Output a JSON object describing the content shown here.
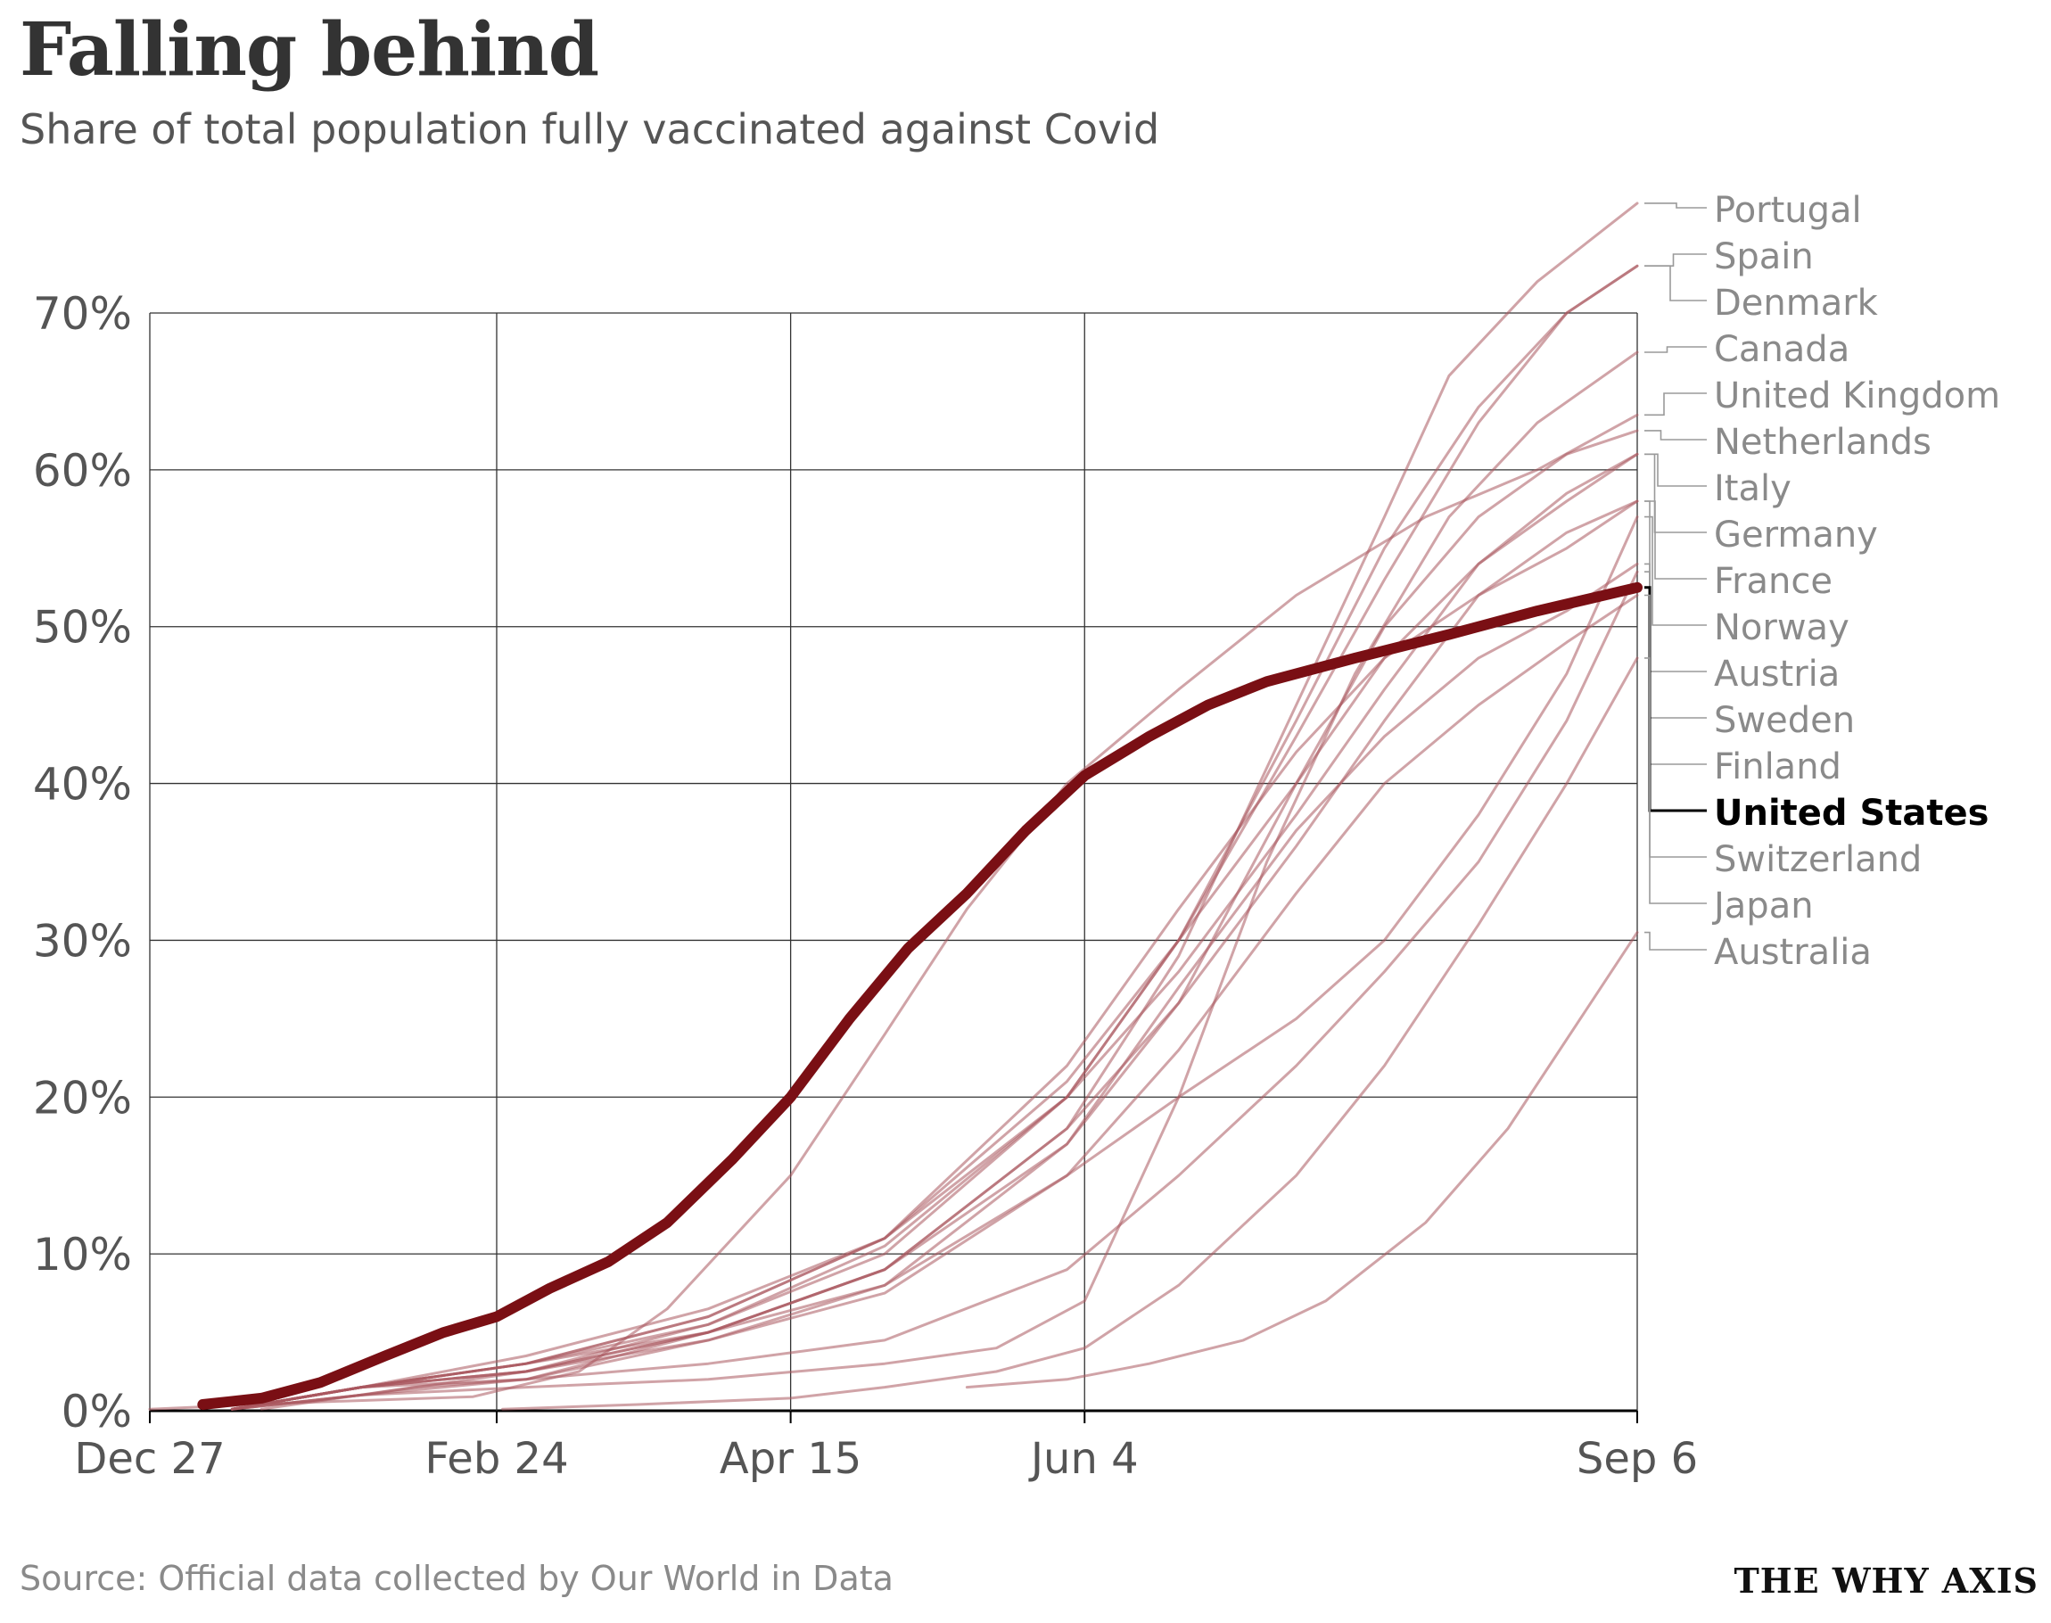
{
  "title": "Falling behind",
  "subtitle": "Share of total population fully vaccinated against Covid",
  "source": "Source: Official data collected by Our World in Data",
  "brand": "THE WHY AXIS",
  "colors": {
    "highlight": "#7a0f14",
    "others": "#a9575e",
    "grid": "#333333",
    "axis_text": "#555555",
    "label_text": "#8a8a8a",
    "leader": "#9a9a9a"
  },
  "chart_data": {
    "type": "line",
    "title": "Falling behind",
    "subtitle": "Share of total population fully vaccinated against Covid",
    "x_type": "date",
    "x_domain": [
      "2020-12-27",
      "2021-09-06"
    ],
    "xticks": [
      {
        "date": "2020-12-27",
        "label": "Dec 27"
      },
      {
        "date": "2021-02-24",
        "label": "Feb 24"
      },
      {
        "date": "2021-04-15",
        "label": "Apr 15"
      },
      {
        "date": "2021-06-04",
        "label": "Jun 4"
      },
      {
        "date": "2021-09-06",
        "label": "Sep 6"
      }
    ],
    "ylim": [
      0,
      70
    ],
    "yticks": [
      0,
      10,
      20,
      30,
      40,
      50,
      60,
      70
    ],
    "ytick_labels": [
      "0%",
      "10%",
      "20%",
      "30%",
      "40%",
      "50%",
      "60%",
      "70%"
    ],
    "grid": true,
    "highlight_series": "United States",
    "series": [
      {
        "name": "Portugal",
        "points": [
          [
            "2021-01-10",
            0.1
          ],
          [
            "2021-02-01",
            1.0
          ],
          [
            "2021-03-01",
            2.5
          ],
          [
            "2021-04-01",
            5.0
          ],
          [
            "2021-05-01",
            9.0
          ],
          [
            "2021-06-01",
            18.0
          ],
          [
            "2021-06-20",
            29.0
          ],
          [
            "2021-07-10",
            45.0
          ],
          [
            "2021-07-25",
            57.0
          ],
          [
            "2021-08-05",
            66.0
          ],
          [
            "2021-08-20",
            72.0
          ],
          [
            "2021-09-06",
            77.0
          ]
        ]
      },
      {
        "name": "Spain",
        "points": [
          [
            "2021-01-10",
            0.1
          ],
          [
            "2021-02-01",
            1.5
          ],
          [
            "2021-03-01",
            3.0
          ],
          [
            "2021-04-01",
            6.0
          ],
          [
            "2021-05-01",
            11.0
          ],
          [
            "2021-06-01",
            20.0
          ],
          [
            "2021-06-20",
            30.0
          ],
          [
            "2021-07-10",
            44.0
          ],
          [
            "2021-07-25",
            55.0
          ],
          [
            "2021-08-10",
            64.0
          ],
          [
            "2021-08-25",
            70.0
          ],
          [
            "2021-09-06",
            73.0
          ]
        ]
      },
      {
        "name": "Denmark",
        "points": [
          [
            "2021-01-10",
            0.1
          ],
          [
            "2021-02-01",
            1.5
          ],
          [
            "2021-03-01",
            3.5
          ],
          [
            "2021-04-01",
            6.5
          ],
          [
            "2021-05-01",
            11.0
          ],
          [
            "2021-06-01",
            21.0
          ],
          [
            "2021-06-20",
            30.0
          ],
          [
            "2021-07-10",
            43.0
          ],
          [
            "2021-07-25",
            53.0
          ],
          [
            "2021-08-10",
            63.0
          ],
          [
            "2021-08-25",
            70.0
          ],
          [
            "2021-09-06",
            73.0
          ]
        ]
      },
      {
        "name": "Canada",
        "points": [
          [
            "2021-01-10",
            0.1
          ],
          [
            "2021-02-01",
            1.0
          ],
          [
            "2021-03-01",
            1.5
          ],
          [
            "2021-04-01",
            2.0
          ],
          [
            "2021-05-01",
            3.0
          ],
          [
            "2021-05-20",
            4.0
          ],
          [
            "2021-06-04",
            7.0
          ],
          [
            "2021-06-20",
            20.0
          ],
          [
            "2021-07-05",
            35.0
          ],
          [
            "2021-07-20",
            47.0
          ],
          [
            "2021-08-05",
            57.0
          ],
          [
            "2021-08-20",
            63.0
          ],
          [
            "2021-09-06",
            67.5
          ]
        ]
      },
      {
        "name": "United Kingdom",
        "points": [
          [
            "2020-12-27",
            0.1
          ],
          [
            "2021-01-20",
            0.5
          ],
          [
            "2021-02-20",
            0.9
          ],
          [
            "2021-03-10",
            2.5
          ],
          [
            "2021-03-25",
            6.5
          ],
          [
            "2021-04-15",
            15.0
          ],
          [
            "2021-05-01",
            24.0
          ],
          [
            "2021-05-15",
            32.0
          ],
          [
            "2021-06-01",
            40.0
          ],
          [
            "2021-06-20",
            46.0
          ],
          [
            "2021-07-10",
            52.0
          ],
          [
            "2021-08-01",
            57.0
          ],
          [
            "2021-08-20",
            60.0
          ],
          [
            "2021-09-06",
            63.5
          ]
        ]
      },
      {
        "name": "Netherlands",
        "points": [
          [
            "2021-01-15",
            0.1
          ],
          [
            "2021-02-10",
            1.5
          ],
          [
            "2021-03-01",
            2.0
          ],
          [
            "2021-04-01",
            5.0
          ],
          [
            "2021-05-01",
            9.0
          ],
          [
            "2021-06-01",
            17.0
          ],
          [
            "2021-06-20",
            26.0
          ],
          [
            "2021-07-10",
            40.0
          ],
          [
            "2021-07-25",
            50.0
          ],
          [
            "2021-08-10",
            57.0
          ],
          [
            "2021-08-25",
            61.0
          ],
          [
            "2021-09-06",
            62.5
          ]
        ]
      },
      {
        "name": "Italy",
        "points": [
          [
            "2021-01-10",
            0.1
          ],
          [
            "2021-02-01",
            1.5
          ],
          [
            "2021-03-01",
            2.5
          ],
          [
            "2021-04-01",
            5.5
          ],
          [
            "2021-05-01",
            10.5
          ],
          [
            "2021-06-01",
            20.0
          ],
          [
            "2021-06-20",
            28.0
          ],
          [
            "2021-07-10",
            38.0
          ],
          [
            "2021-07-25",
            46.0
          ],
          [
            "2021-08-10",
            54.0
          ],
          [
            "2021-08-25",
            58.0
          ],
          [
            "2021-09-06",
            61.0
          ]
        ]
      },
      {
        "name": "Germany",
        "points": [
          [
            "2021-01-10",
            0.1
          ],
          [
            "2021-02-01",
            1.5
          ],
          [
            "2021-03-01",
            3.0
          ],
          [
            "2021-04-01",
            5.5
          ],
          [
            "2021-05-01",
            10.0
          ],
          [
            "2021-06-01",
            20.0
          ],
          [
            "2021-06-20",
            30.0
          ],
          [
            "2021-07-10",
            40.0
          ],
          [
            "2021-07-25",
            48.0
          ],
          [
            "2021-08-10",
            54.0
          ],
          [
            "2021-08-25",
            58.5
          ],
          [
            "2021-09-06",
            61.0
          ]
        ]
      },
      {
        "name": "France",
        "points": [
          [
            "2021-01-10",
            0.1
          ],
          [
            "2021-02-01",
            1.5
          ],
          [
            "2021-03-01",
            3.0
          ],
          [
            "2021-04-01",
            5.0
          ],
          [
            "2021-05-01",
            9.0
          ],
          [
            "2021-06-01",
            18.0
          ],
          [
            "2021-06-20",
            26.0
          ],
          [
            "2021-07-10",
            36.0
          ],
          [
            "2021-07-25",
            44.0
          ],
          [
            "2021-08-10",
            52.0
          ],
          [
            "2021-08-25",
            56.0
          ],
          [
            "2021-09-06",
            58.0
          ]
        ]
      },
      {
        "name": "Norway",
        "points": [
          [
            "2021-01-10",
            0.1
          ],
          [
            "2021-02-01",
            1.5
          ],
          [
            "2021-03-01",
            2.5
          ],
          [
            "2021-04-01",
            4.5
          ],
          [
            "2021-05-01",
            7.5
          ],
          [
            "2021-06-01",
            15.0
          ],
          [
            "2021-06-20",
            20.0
          ],
          [
            "2021-07-10",
            25.0
          ],
          [
            "2021-07-25",
            30.0
          ],
          [
            "2021-08-10",
            38.0
          ],
          [
            "2021-08-25",
            47.0
          ],
          [
            "2021-09-06",
            57.0
          ]
        ]
      },
      {
        "name": "Austria",
        "points": [
          [
            "2021-01-10",
            0.1
          ],
          [
            "2021-02-01",
            1.5
          ],
          [
            "2021-03-01",
            3.0
          ],
          [
            "2021-04-01",
            6.0
          ],
          [
            "2021-05-01",
            11.0
          ],
          [
            "2021-06-01",
            22.0
          ],
          [
            "2021-06-20",
            32.0
          ],
          [
            "2021-07-10",
            42.0
          ],
          [
            "2021-07-25",
            48.0
          ],
          [
            "2021-08-10",
            52.0
          ],
          [
            "2021-08-25",
            55.0
          ],
          [
            "2021-09-06",
            58.0
          ]
        ]
      },
      {
        "name": "Sweden",
        "points": [
          [
            "2021-01-10",
            0.1
          ],
          [
            "2021-02-01",
            1.5
          ],
          [
            "2021-03-01",
            2.5
          ],
          [
            "2021-04-01",
            5.0
          ],
          [
            "2021-05-01",
            8.0
          ],
          [
            "2021-06-01",
            17.0
          ],
          [
            "2021-06-20",
            27.0
          ],
          [
            "2021-07-10",
            37.0
          ],
          [
            "2021-07-25",
            43.0
          ],
          [
            "2021-08-10",
            48.0
          ],
          [
            "2021-08-25",
            51.0
          ],
          [
            "2021-09-06",
            54.0
          ]
        ]
      },
      {
        "name": "Finland",
        "points": [
          [
            "2021-01-10",
            0.1
          ],
          [
            "2021-02-01",
            1.5
          ],
          [
            "2021-03-01",
            2.0
          ],
          [
            "2021-04-01",
            3.0
          ],
          [
            "2021-05-01",
            4.5
          ],
          [
            "2021-06-01",
            9.0
          ],
          [
            "2021-06-20",
            15.0
          ],
          [
            "2021-07-10",
            22.0
          ],
          [
            "2021-07-25",
            28.0
          ],
          [
            "2021-08-10",
            35.0
          ],
          [
            "2021-08-25",
            44.0
          ],
          [
            "2021-09-06",
            53.5
          ]
        ]
      },
      {
        "name": "United States",
        "points": [
          [
            "2021-01-05",
            0.4
          ],
          [
            "2021-01-15",
            0.8
          ],
          [
            "2021-01-25",
            1.8
          ],
          [
            "2021-02-05",
            3.5
          ],
          [
            "2021-02-15",
            5.0
          ],
          [
            "2021-02-24",
            6.0
          ],
          [
            "2021-03-05",
            7.8
          ],
          [
            "2021-03-15",
            9.5
          ],
          [
            "2021-03-25",
            12.0
          ],
          [
            "2021-04-05",
            16.0
          ],
          [
            "2021-04-15",
            20.0
          ],
          [
            "2021-04-25",
            25.0
          ],
          [
            "2021-05-05",
            29.5
          ],
          [
            "2021-05-15",
            33.0
          ],
          [
            "2021-05-25",
            37.0
          ],
          [
            "2021-06-04",
            40.5
          ],
          [
            "2021-06-15",
            43.0
          ],
          [
            "2021-06-25",
            45.0
          ],
          [
            "2021-07-05",
            46.5
          ],
          [
            "2021-07-20",
            48.0
          ],
          [
            "2021-08-05",
            49.5
          ],
          [
            "2021-08-20",
            51.0
          ],
          [
            "2021-09-06",
            52.5
          ]
        ]
      },
      {
        "name": "Switzerland",
        "points": [
          [
            "2021-01-10",
            0.1
          ],
          [
            "2021-02-01",
            1.0
          ],
          [
            "2021-03-01",
            2.0
          ],
          [
            "2021-04-01",
            4.5
          ],
          [
            "2021-05-01",
            8.0
          ],
          [
            "2021-06-01",
            15.0
          ],
          [
            "2021-06-20",
            23.0
          ],
          [
            "2021-07-10",
            33.0
          ],
          [
            "2021-07-25",
            40.0
          ],
          [
            "2021-08-10",
            45.0
          ],
          [
            "2021-08-25",
            49.0
          ],
          [
            "2021-09-06",
            52.0
          ]
        ]
      },
      {
        "name": "Japan",
        "points": [
          [
            "2021-02-25",
            0.1
          ],
          [
            "2021-03-20",
            0.4
          ],
          [
            "2021-04-15",
            0.8
          ],
          [
            "2021-05-01",
            1.5
          ],
          [
            "2021-05-20",
            2.5
          ],
          [
            "2021-06-04",
            4.0
          ],
          [
            "2021-06-20",
            8.0
          ],
          [
            "2021-07-10",
            15.0
          ],
          [
            "2021-07-25",
            22.0
          ],
          [
            "2021-08-10",
            31.0
          ],
          [
            "2021-08-25",
            40.0
          ],
          [
            "2021-09-06",
            48.0
          ]
        ]
      },
      {
        "name": "Australia",
        "points": [
          [
            "2021-05-15",
            1.5
          ],
          [
            "2021-06-01",
            2.0
          ],
          [
            "2021-06-15",
            3.0
          ],
          [
            "2021-07-01",
            4.5
          ],
          [
            "2021-07-15",
            7.0
          ],
          [
            "2021-08-01",
            12.0
          ],
          [
            "2021-08-15",
            18.0
          ],
          [
            "2021-09-06",
            30.5
          ]
        ]
      }
    ],
    "labels_order": [
      "Portugal",
      "Spain",
      "Denmark",
      "Canada",
      "United Kingdom",
      "Netherlands",
      "Italy",
      "Germany",
      "France",
      "Norway",
      "Austria",
      "Sweden",
      "Finland",
      "United States",
      "Switzerland",
      "Japan",
      "Australia"
    ]
  }
}
